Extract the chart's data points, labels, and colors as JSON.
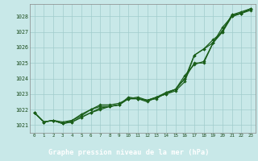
{
  "title": "Graphe pression niveau de la mer (hPa)",
  "xlim": [
    -0.5,
    23.5
  ],
  "ylim": [
    1020.5,
    1028.8
  ],
  "yticks": [
    1021,
    1022,
    1023,
    1024,
    1025,
    1026,
    1027,
    1028
  ],
  "xtick_labels": [
    "0",
    "1",
    "2",
    "3",
    "4",
    "5",
    "6",
    "7",
    "8",
    "9",
    "10",
    "11",
    "12",
    "13",
    "14",
    "15",
    "16",
    "17",
    "18",
    "19",
    "20",
    "21",
    "22",
    "23"
  ],
  "background_color": "#c8e8e8",
  "plot_bg_color": "#c8e8e8",
  "grid_color": "#a0cccc",
  "line_color": "#1a5e1a",
  "title_bg": "#1a5e1a",
  "title_fg": "#ffffff",
  "series": [
    [
      1021.8,
      1021.2,
      1021.3,
      1021.1,
      1021.3,
      1021.6,
      1022.0,
      1022.2,
      1022.2,
      1022.3,
      1022.7,
      1022.7,
      1022.6,
      1022.8,
      1023.0,
      1023.3,
      1024.0,
      1025.5,
      1025.9,
      1026.5,
      1027.0,
      1028.1,
      1028.3,
      1028.5
    ],
    [
      1021.8,
      1021.2,
      1021.3,
      1021.1,
      1021.2,
      1021.5,
      1021.8,
      1022.0,
      1022.2,
      1022.3,
      1022.8,
      1022.7,
      1022.6,
      1022.7,
      1023.1,
      1023.3,
      1024.2,
      1024.9,
      1025.1,
      1026.3,
      1027.0,
      1028.0,
      1028.2,
      1028.4
    ],
    [
      1021.8,
      1021.2,
      1021.3,
      1021.1,
      1021.2,
      1021.5,
      1021.8,
      1022.1,
      1022.2,
      1022.3,
      1022.7,
      1022.7,
      1022.5,
      1022.8,
      1023.0,
      1023.2,
      1023.8,
      1025.5,
      1025.9,
      1026.3,
      1027.3,
      1028.0,
      1028.2,
      1028.5
    ],
    [
      1021.8,
      1021.2,
      1021.3,
      1021.2,
      1021.3,
      1021.7,
      1022.0,
      1022.3,
      1022.3,
      1022.4,
      1022.7,
      1022.8,
      1022.6,
      1022.8,
      1023.1,
      1023.3,
      1024.0,
      1025.0,
      1025.0,
      1026.3,
      1027.1,
      1028.1,
      1028.2,
      1028.5
    ]
  ]
}
